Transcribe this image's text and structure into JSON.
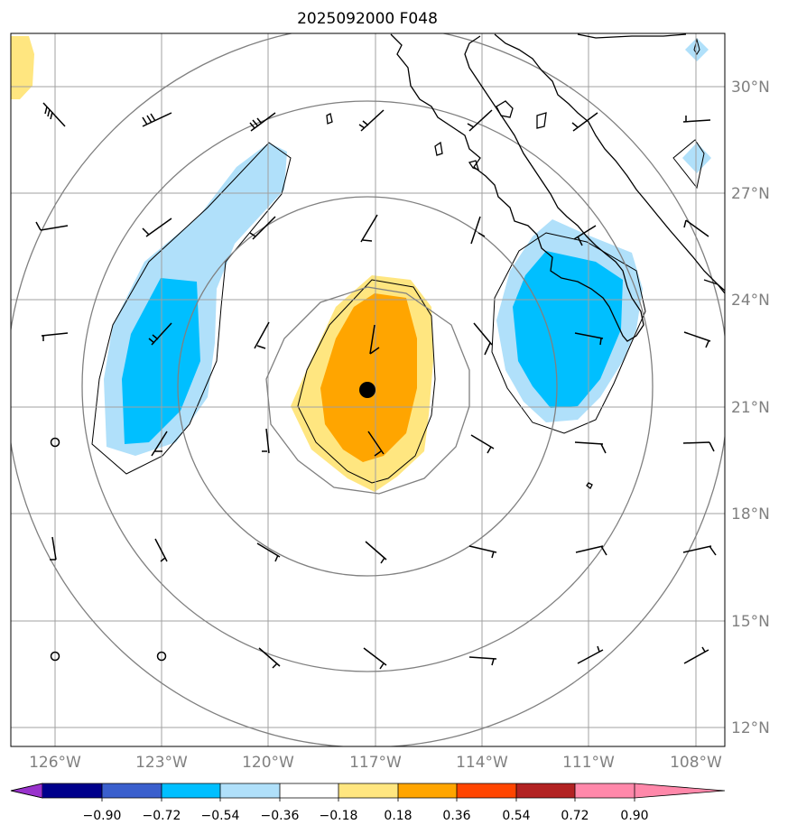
{
  "title": "2025092000 F048",
  "lat_labels": [
    "30°N",
    "27°N",
    "24°N",
    "21°N",
    "18°N",
    "15°N",
    "12°N"
  ],
  "lon_labels": [
    "126°W",
    "123°W",
    "120°W",
    "117°W",
    "114°W",
    "111°W",
    "108°W"
  ],
  "colorbar": {
    "ticks": [
      "−0.90",
      "−0.72",
      "−0.54",
      "−0.36",
      "−0.18",
      "0.18",
      "0.36",
      "0.54",
      "0.72",
      "0.90"
    ],
    "colors": [
      "#9932cc",
      "#00008b",
      "#3a5fcd",
      "#00bfff",
      "#b0e0fa",
      "#ffffff",
      "#ffe680",
      "#ffa500",
      "#ff4500",
      "#b22222",
      "#ff88aa"
    ]
  },
  "map": {
    "extent_lon": [
      -127.2,
      -107.2
    ],
    "extent_lat": [
      11.6,
      31.5
    ],
    "gridline_color": "#a0a0a0",
    "coastline_color": "#000000",
    "center_marker": "storm-center"
  }
}
